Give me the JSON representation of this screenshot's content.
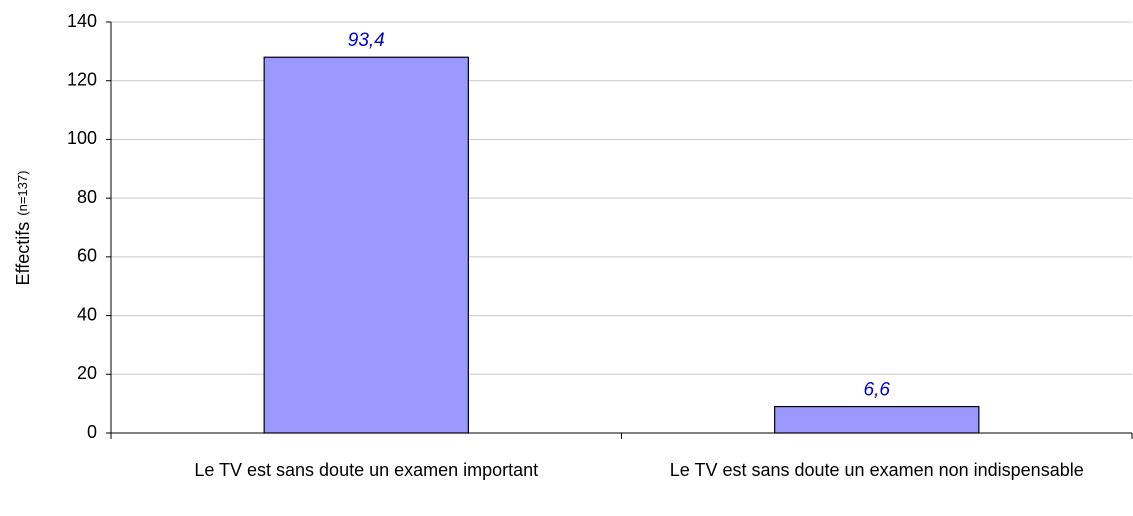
{
  "chart_data": {
    "type": "bar",
    "y_label": "Effectifs",
    "y_label_note": "(n=137)",
    "categories": [
      "Le TV est sans doute un examen important",
      "Le TV est sans doute un examen non indispensable"
    ],
    "values": [
      128,
      9
    ],
    "annotations": [
      "93,4",
      "6,6"
    ],
    "color": "#9999ff",
    "ylim": [
      0,
      140
    ],
    "yticks": [
      0,
      20,
      40,
      60,
      80,
      100,
      120,
      140
    ],
    "grid": true
  }
}
